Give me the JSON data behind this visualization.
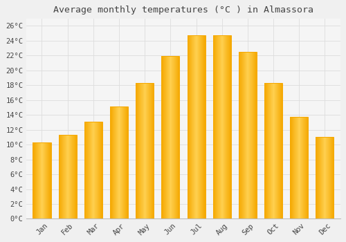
{
  "title": "Average monthly temperatures (°C ) in Almassora",
  "months": [
    "Jan",
    "Feb",
    "Mar",
    "Apr",
    "May",
    "Jun",
    "Jul",
    "Aug",
    "Sep",
    "Oct",
    "Nov",
    "Dec"
  ],
  "values": [
    10.3,
    11.3,
    13.1,
    15.1,
    18.3,
    21.9,
    24.7,
    24.7,
    22.5,
    18.3,
    13.7,
    11.0
  ],
  "bar_color_center": "#FFD050",
  "bar_color_edge": "#F5A800",
  "background_color": "#F0F0F0",
  "plot_bg_color": "#F5F5F5",
  "grid_color": "#DDDDDD",
  "text_color": "#444444",
  "ylim": [
    0,
    27
  ],
  "yticks": [
    0,
    2,
    4,
    6,
    8,
    10,
    12,
    14,
    16,
    18,
    20,
    22,
    24,
    26
  ],
  "title_fontsize": 9.5,
  "tick_fontsize": 7.5
}
